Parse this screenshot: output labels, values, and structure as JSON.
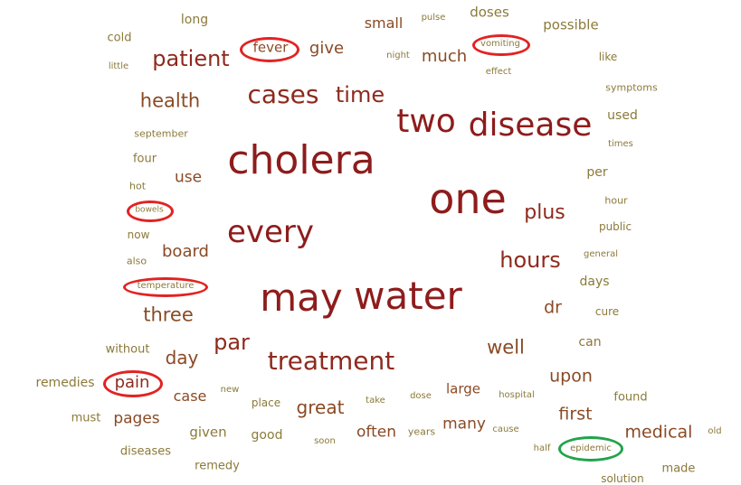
{
  "colors": {
    "large": "#8e1c1c",
    "medium": "#8a4a24",
    "small": "#8b7a3a",
    "ring_red": "#e32222",
    "ring_green": "#23a34a"
  },
  "words": [
    {
      "id": "cholera",
      "text": "cholera",
      "size": 44,
      "color": "#8e1c1c"
    },
    {
      "id": "one",
      "text": "one",
      "size": 46,
      "color": "#8e1c1c"
    },
    {
      "id": "may",
      "text": "may",
      "size": 42,
      "color": "#8e1c1c"
    },
    {
      "id": "water",
      "text": "water",
      "size": 42,
      "color": "#8e1c1c"
    },
    {
      "id": "two",
      "text": "two",
      "size": 36,
      "color": "#8e1c1c"
    },
    {
      "id": "disease",
      "text": "disease",
      "size": 36,
      "color": "#8e1c1c"
    },
    {
      "id": "every",
      "text": "every",
      "size": 34,
      "color": "#8e1c1c"
    },
    {
      "id": "cases",
      "text": "cases",
      "size": 28,
      "color": "#8e2a1e"
    },
    {
      "id": "time",
      "text": "time",
      "size": 24,
      "color": "#8e2a1e"
    },
    {
      "id": "treatment",
      "text": "treatment",
      "size": 28,
      "color": "#8e2a1e"
    },
    {
      "id": "patient",
      "text": "patient",
      "size": 24,
      "color": "#8e2a1e"
    },
    {
      "id": "par",
      "text": "par",
      "size": 24,
      "color": "#8e2a1e"
    },
    {
      "id": "hours",
      "text": "hours",
      "size": 24,
      "color": "#8e2a1e"
    },
    {
      "id": "plus",
      "text": "plus",
      "size": 22,
      "color": "#8e2a1e"
    },
    {
      "id": "health",
      "text": "health",
      "size": 21,
      "color": "#8a4a24"
    },
    {
      "id": "three",
      "text": "three",
      "size": 21,
      "color": "#8a4a24"
    },
    {
      "id": "well",
      "text": "well",
      "size": 21,
      "color": "#8a4a24"
    },
    {
      "id": "great",
      "text": "great",
      "size": 20,
      "color": "#8a4a24"
    },
    {
      "id": "day",
      "text": "day",
      "size": 20,
      "color": "#8a4a24"
    },
    {
      "id": "medical",
      "text": "medical",
      "size": 19,
      "color": "#8a4a24"
    },
    {
      "id": "much",
      "text": "much",
      "size": 18,
      "color": "#8a4a24"
    },
    {
      "id": "give",
      "text": "give",
      "size": 18,
      "color": "#8a4a24"
    },
    {
      "id": "board",
      "text": "board",
      "size": 18,
      "color": "#8a4a24"
    },
    {
      "id": "upon",
      "text": "upon",
      "size": 19,
      "color": "#8a4a24"
    },
    {
      "id": "first",
      "text": "first",
      "size": 19,
      "color": "#8a4a24"
    },
    {
      "id": "dr",
      "text": "dr",
      "size": 19,
      "color": "#8a4a24"
    },
    {
      "id": "pain",
      "text": "pain",
      "size": 18,
      "color": "#8e2a1e"
    },
    {
      "id": "fever",
      "text": "fever",
      "size": 15,
      "color": "#8a4a24"
    },
    {
      "id": "use",
      "text": "use",
      "size": 17,
      "color": "#8a4a24"
    },
    {
      "id": "many",
      "text": "many",
      "size": 17,
      "color": "#8a4a24"
    },
    {
      "id": "often",
      "text": "often",
      "size": 17,
      "color": "#8a4a24"
    },
    {
      "id": "pages",
      "text": "pages",
      "size": 17,
      "color": "#8a4a24"
    },
    {
      "id": "small",
      "text": "small",
      "size": 16,
      "color": "#8a4a24"
    },
    {
      "id": "case",
      "text": "case",
      "size": 16,
      "color": "#8a4a24"
    },
    {
      "id": "large",
      "text": "large",
      "size": 15,
      "color": "#8a4a24"
    },
    {
      "id": "given",
      "text": "given",
      "size": 15,
      "color": "#8b7a3a"
    },
    {
      "id": "possible",
      "text": "possible",
      "size": 15,
      "color": "#8b7a3a"
    },
    {
      "id": "doses",
      "text": "doses",
      "size": 15,
      "color": "#8b7a3a"
    },
    {
      "id": "remedies",
      "text": "remedies",
      "size": 14,
      "color": "#8b7a3a"
    },
    {
      "id": "good",
      "text": "good",
      "size": 14,
      "color": "#8b7a3a"
    },
    {
      "id": "can",
      "text": "can",
      "size": 14,
      "color": "#8b7a3a"
    },
    {
      "id": "days",
      "text": "days",
      "size": 14,
      "color": "#8b7a3a"
    },
    {
      "id": "long",
      "text": "long",
      "size": 14,
      "color": "#8b7a3a"
    },
    {
      "id": "cold",
      "text": "cold",
      "size": 13,
      "color": "#8b7a3a"
    },
    {
      "id": "used",
      "text": "used",
      "size": 14,
      "color": "#8b7a3a"
    },
    {
      "id": "four",
      "text": "four",
      "size": 13,
      "color": "#8b7a3a"
    },
    {
      "id": "per",
      "text": "per",
      "size": 14,
      "color": "#8b7a3a"
    },
    {
      "id": "must",
      "text": "must",
      "size": 13,
      "color": "#8b7a3a"
    },
    {
      "id": "without",
      "text": "without",
      "size": 13,
      "color": "#8b7a3a"
    },
    {
      "id": "found",
      "text": "found",
      "size": 13,
      "color": "#8b7a3a"
    },
    {
      "id": "remedy",
      "text": "remedy",
      "size": 13,
      "color": "#8b7a3a"
    },
    {
      "id": "diseases",
      "text": "diseases",
      "size": 13,
      "color": "#8b7a3a"
    },
    {
      "id": "made",
      "text": "made",
      "size": 13,
      "color": "#8b7a3a"
    },
    {
      "id": "place",
      "text": "place",
      "size": 12,
      "color": "#8b7a3a"
    },
    {
      "id": "now",
      "text": "now",
      "size": 12,
      "color": "#8b7a3a"
    },
    {
      "id": "cure",
      "text": "cure",
      "size": 12,
      "color": "#8b7a3a"
    },
    {
      "id": "like",
      "text": "like",
      "size": 12,
      "color": "#8b7a3a"
    },
    {
      "id": "public",
      "text": "public",
      "size": 12,
      "color": "#8b7a3a"
    },
    {
      "id": "symptoms",
      "text": "symptoms",
      "size": 11,
      "color": "#8b7a3a"
    },
    {
      "id": "hot",
      "text": "hot",
      "size": 11,
      "color": "#8b7a3a"
    },
    {
      "id": "also",
      "text": "also",
      "size": 11,
      "color": "#8b7a3a"
    },
    {
      "id": "september",
      "text": "september",
      "size": 11,
      "color": "#8b7a3a"
    },
    {
      "id": "little",
      "text": "little",
      "size": 10,
      "color": "#8b7a3a"
    },
    {
      "id": "hour",
      "text": "hour",
      "size": 11,
      "color": "#8b7a3a"
    },
    {
      "id": "general",
      "text": "general",
      "size": 10,
      "color": "#8b7a3a"
    },
    {
      "id": "times",
      "text": "times",
      "size": 10,
      "color": "#8b7a3a"
    },
    {
      "id": "years",
      "text": "years",
      "size": 11,
      "color": "#8b7a3a"
    },
    {
      "id": "dose",
      "text": "dose",
      "size": 10,
      "color": "#8b7a3a"
    },
    {
      "id": "pulse",
      "text": "pulse",
      "size": 10,
      "color": "#8b7a3a"
    },
    {
      "id": "night",
      "text": "night",
      "size": 10,
      "color": "#8b7a3a"
    },
    {
      "id": "effect",
      "text": "effect",
      "size": 10,
      "color": "#8b7a3a"
    },
    {
      "id": "new",
      "text": "new",
      "size": 10,
      "color": "#8b7a3a"
    },
    {
      "id": "take",
      "text": "take",
      "size": 10,
      "color": "#8b7a3a"
    },
    {
      "id": "hospital",
      "text": "hospital",
      "size": 10,
      "color": "#8b7a3a"
    },
    {
      "id": "cause",
      "text": "cause",
      "size": 10,
      "color": "#8b7a3a"
    },
    {
      "id": "soon",
      "text": "soon",
      "size": 10,
      "color": "#8b7a3a"
    },
    {
      "id": "half",
      "text": "half",
      "size": 10,
      "color": "#8b7a3a"
    },
    {
      "id": "old",
      "text": "old",
      "size": 10,
      "color": "#8b7a3a"
    },
    {
      "id": "solution",
      "text": "solution",
      "size": 12,
      "color": "#8b7a3a"
    },
    {
      "id": "vomiting",
      "text": "vomiting",
      "size": 10,
      "color": "#8b7a3a"
    },
    {
      "id": "bowels",
      "text": "bowels",
      "size": 9,
      "color": "#8b7a3a"
    },
    {
      "id": "temperature",
      "text": "temperature",
      "size": 10,
      "color": "#8b7a3a"
    },
    {
      "id": "epidemic",
      "text": "epidemic",
      "size": 10,
      "color": "#8b7a3a"
    }
  ],
  "highlighted_words": [
    {
      "word": "fever",
      "ring": "red"
    },
    {
      "word": "vomiting",
      "ring": "red"
    },
    {
      "word": "bowels",
      "ring": "red"
    },
    {
      "word": "temperature",
      "ring": "red"
    },
    {
      "word": "pain",
      "ring": "red"
    },
    {
      "word": "epidemic",
      "ring": "green"
    }
  ]
}
